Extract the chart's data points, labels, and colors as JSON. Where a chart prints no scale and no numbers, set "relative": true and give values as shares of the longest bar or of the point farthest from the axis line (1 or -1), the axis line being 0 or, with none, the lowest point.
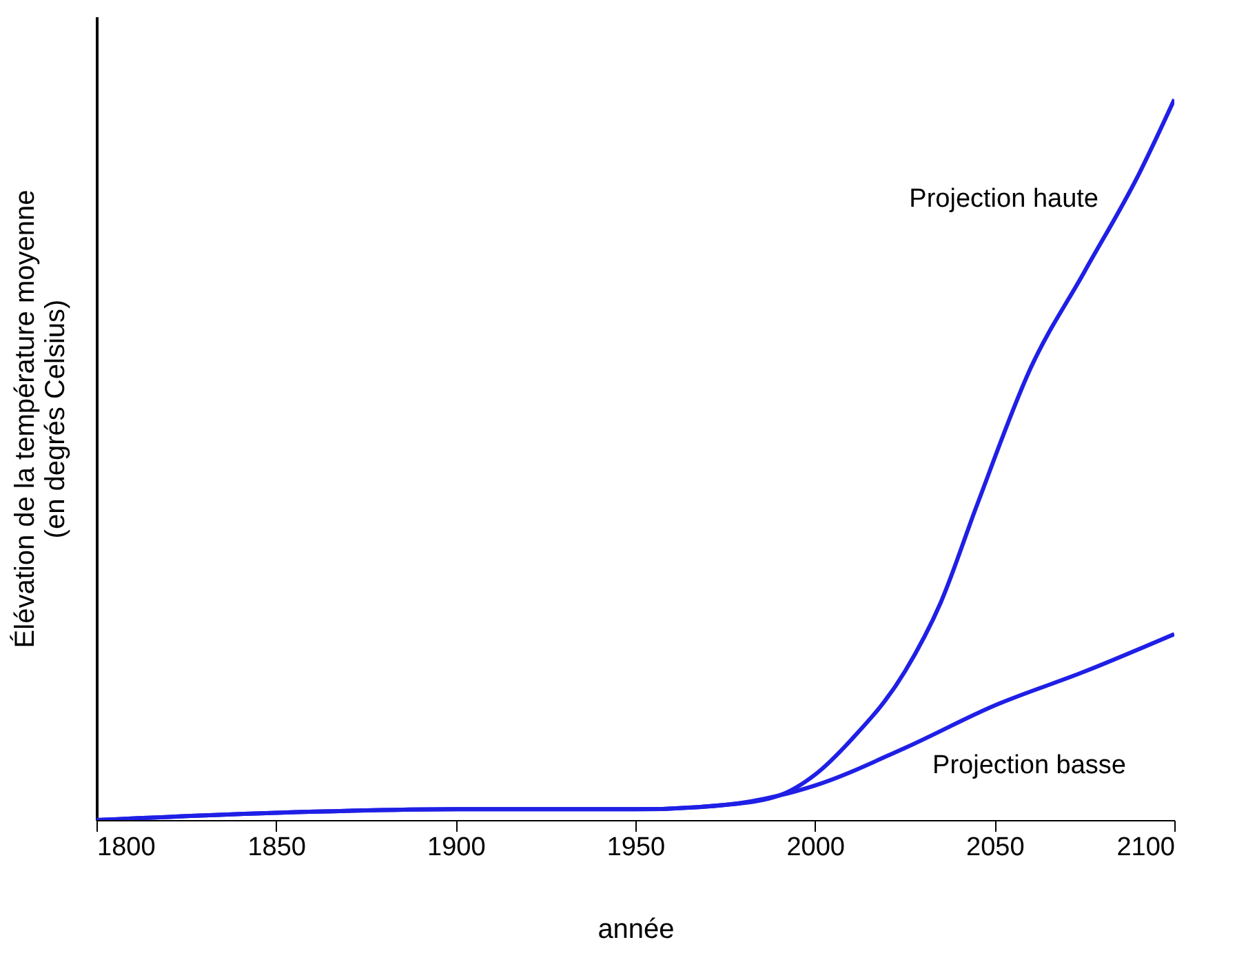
{
  "chart_data": {
    "type": "line",
    "relative": true,
    "xlabel": "année",
    "ylabel": "Élévation  de la température  moyenne\n(en degrés Celsius)",
    "xlim": [
      1800,
      2100
    ],
    "xticks": [
      1800,
      1850,
      1900,
      1950,
      2000,
      2050,
      2100
    ],
    "grid": false,
    "legend": false,
    "series": [
      {
        "name": "Projection haute",
        "color": "#1f1fe6",
        "x": [
          1800,
          1850,
          1900,
          1950,
          1975,
          1990,
          2000,
          2010,
          2025,
          2035,
          2045,
          2060,
          2075,
          2090,
          2100
        ],
        "values": [
          0,
          0.01,
          0.015,
          0.015,
          0.021,
          0.034,
          0.063,
          0.111,
          0.206,
          0.302,
          0.436,
          0.627,
          0.761,
          0.895,
          1
        ]
      },
      {
        "name": "Projection basse",
        "color": "#1f1fe6",
        "x": [
          1800,
          1850,
          1900,
          1950,
          1975,
          1990,
          2000,
          2025,
          2050,
          2075,
          2100
        ],
        "values": [
          0,
          0.01,
          0.015,
          0.015,
          0.021,
          0.034,
          0.048,
          0.1,
          0.159,
          0.206,
          0.258
        ]
      }
    ]
  }
}
